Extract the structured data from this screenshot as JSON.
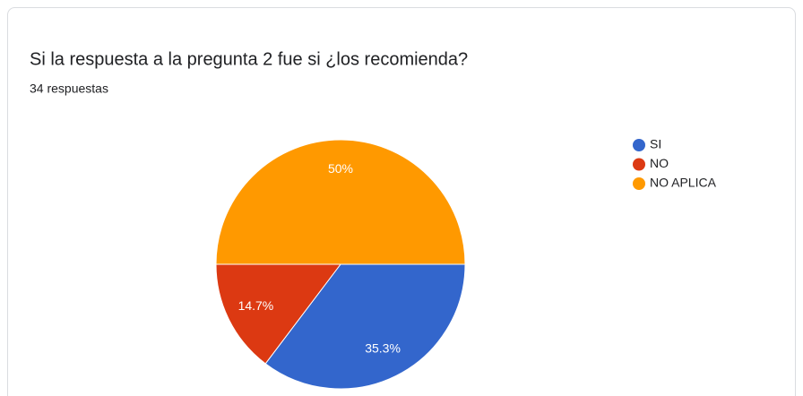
{
  "chart_data": {
    "type": "pie",
    "title": "Si la respuesta a la pregunta 2 fue si ¿los recomienda?",
    "subtitle": "34 respuestas",
    "categories": [
      "SI",
      "NO",
      "NO APLICA"
    ],
    "values": [
      35.3,
      14.7,
      50
    ],
    "value_labels": [
      "35.3%",
      "14.7%",
      "50%"
    ],
    "colors": [
      "#3366cc",
      "#dc3912",
      "#ff9900"
    ],
    "legend": "right"
  }
}
